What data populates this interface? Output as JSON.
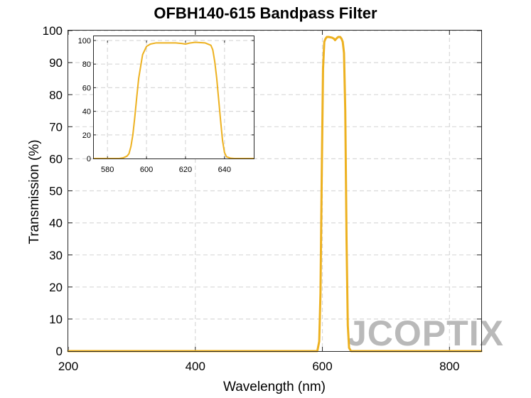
{
  "watermark": "JCOPTIX",
  "chart_data": [
    {
      "type": "line",
      "title": "OFBH140-615 Bandpass Filter",
      "xlabel": "Wavelength (nm)",
      "ylabel": "Transmission (%)",
      "xlim": [
        200,
        850
      ],
      "ylim": [
        0,
        100
      ],
      "xticks": [
        200,
        400,
        600,
        800
      ],
      "yticks": [
        0,
        10,
        20,
        30,
        40,
        50,
        60,
        70,
        80,
        90,
        100
      ],
      "grid": true,
      "line_color": "#EDB120",
      "series": [
        {
          "x": [
            200,
            400,
            540,
            580,
            588,
            592,
            595,
            597,
            599,
            601,
            603,
            605,
            607,
            610,
            615,
            618,
            620,
            622,
            625,
            628,
            630,
            632,
            634,
            636,
            637,
            638,
            640,
            642,
            645,
            650,
            700,
            850
          ],
          "y": [
            0,
            0,
            0,
            0,
            0,
            0,
            3,
            18,
            55,
            88,
            96.5,
            97.5,
            98,
            98,
            97.8,
            97.5,
            97,
            97.5,
            98,
            98,
            97.5,
            96.5,
            93,
            75,
            55,
            35,
            8,
            1,
            0,
            0,
            0,
            0
          ]
        }
      ]
    },
    {
      "type": "line",
      "title": "",
      "xlim": [
        573,
        655
      ],
      "ylim": [
        0,
        100
      ],
      "xticks": [
        580,
        600,
        620,
        640
      ],
      "yticks": [
        0,
        20,
        40,
        60,
        80,
        100
      ],
      "grid": true,
      "line_color": "#EDB120",
      "series": [
        {
          "x": [
            573,
            580,
            586,
            588,
            590,
            591,
            592,
            593,
            594,
            595,
            596,
            598,
            600,
            602,
            605,
            610,
            615,
            618,
            620,
            622,
            625,
            630,
            633,
            634,
            635,
            636,
            637,
            638,
            639,
            640,
            641,
            643,
            645,
            655
          ],
          "y": [
            0,
            0,
            0,
            0.5,
            2,
            4,
            10,
            20,
            35,
            52,
            68,
            88,
            95,
            97,
            98,
            98,
            98,
            97.5,
            97,
            97.8,
            98.5,
            98,
            96,
            92,
            82,
            68,
            50,
            32,
            15,
            5,
            1.5,
            0.3,
            0,
            0
          ]
        }
      ]
    }
  ]
}
